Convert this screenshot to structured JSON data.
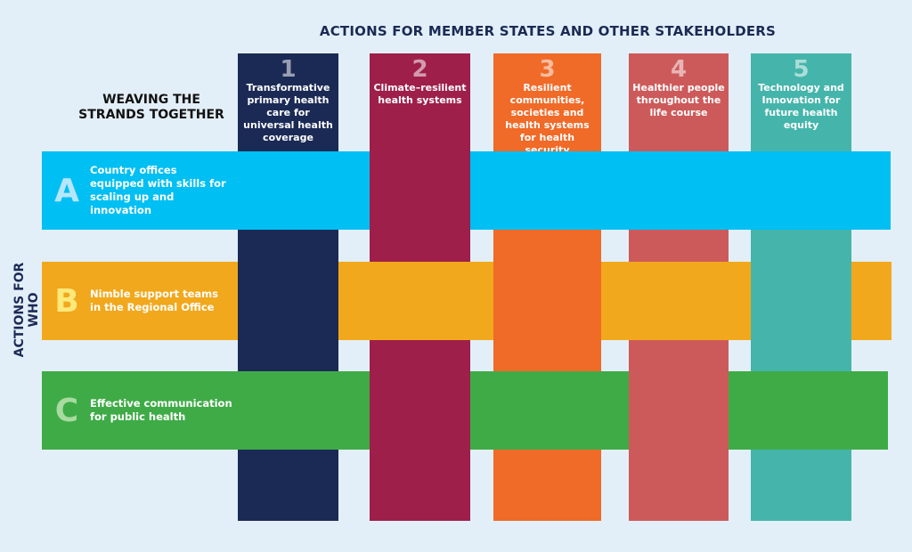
{
  "header": {
    "title": "ACTIONS FOR MEMBER STATES AND OTHER STAKEHOLDERS"
  },
  "left_heading": {
    "line1": "WEAVING THE",
    "line2": "STRANDS TOGETHER"
  },
  "side_label": "ACTIONS FOR WHO",
  "columns": [
    {
      "num": "1",
      "text": "Transformative primary health care for universal health coverage",
      "color": "#1b2a55"
    },
    {
      "num": "2",
      "text": "Climate–resilient health systems",
      "color": "#9e1f4a"
    },
    {
      "num": "3",
      "text": "Resilient communities, societies and health systems for health security",
      "color": "#f06a28"
    },
    {
      "num": "4",
      "text": "Healthier people throughout the life course",
      "color": "#cd5a5a"
    },
    {
      "num": "5",
      "text": "Technology and Innovation for future health equity",
      "color": "#45b5ab"
    }
  ],
  "rows": [
    {
      "letter": "A",
      "text": "Country offices equipped with skills for scaling up and innovation",
      "color": "#00bff3",
      "letter_color": "#b6e6fb"
    },
    {
      "letter": "B",
      "text": "Nimble support teams in the Regional Office",
      "color": "#f2a81d",
      "letter_color": "#fbe97a"
    },
    {
      "letter": "C",
      "text": "Effective communication for public health",
      "color": "#3fab47",
      "letter_color": "#a8dba0"
    }
  ],
  "weave": {
    "row_over": {
      "A": [
        "1",
        "3",
        "4",
        "5"
      ],
      "B": [
        "2",
        "4"
      ],
      "C": [
        "1",
        "3",
        "5"
      ]
    }
  }
}
